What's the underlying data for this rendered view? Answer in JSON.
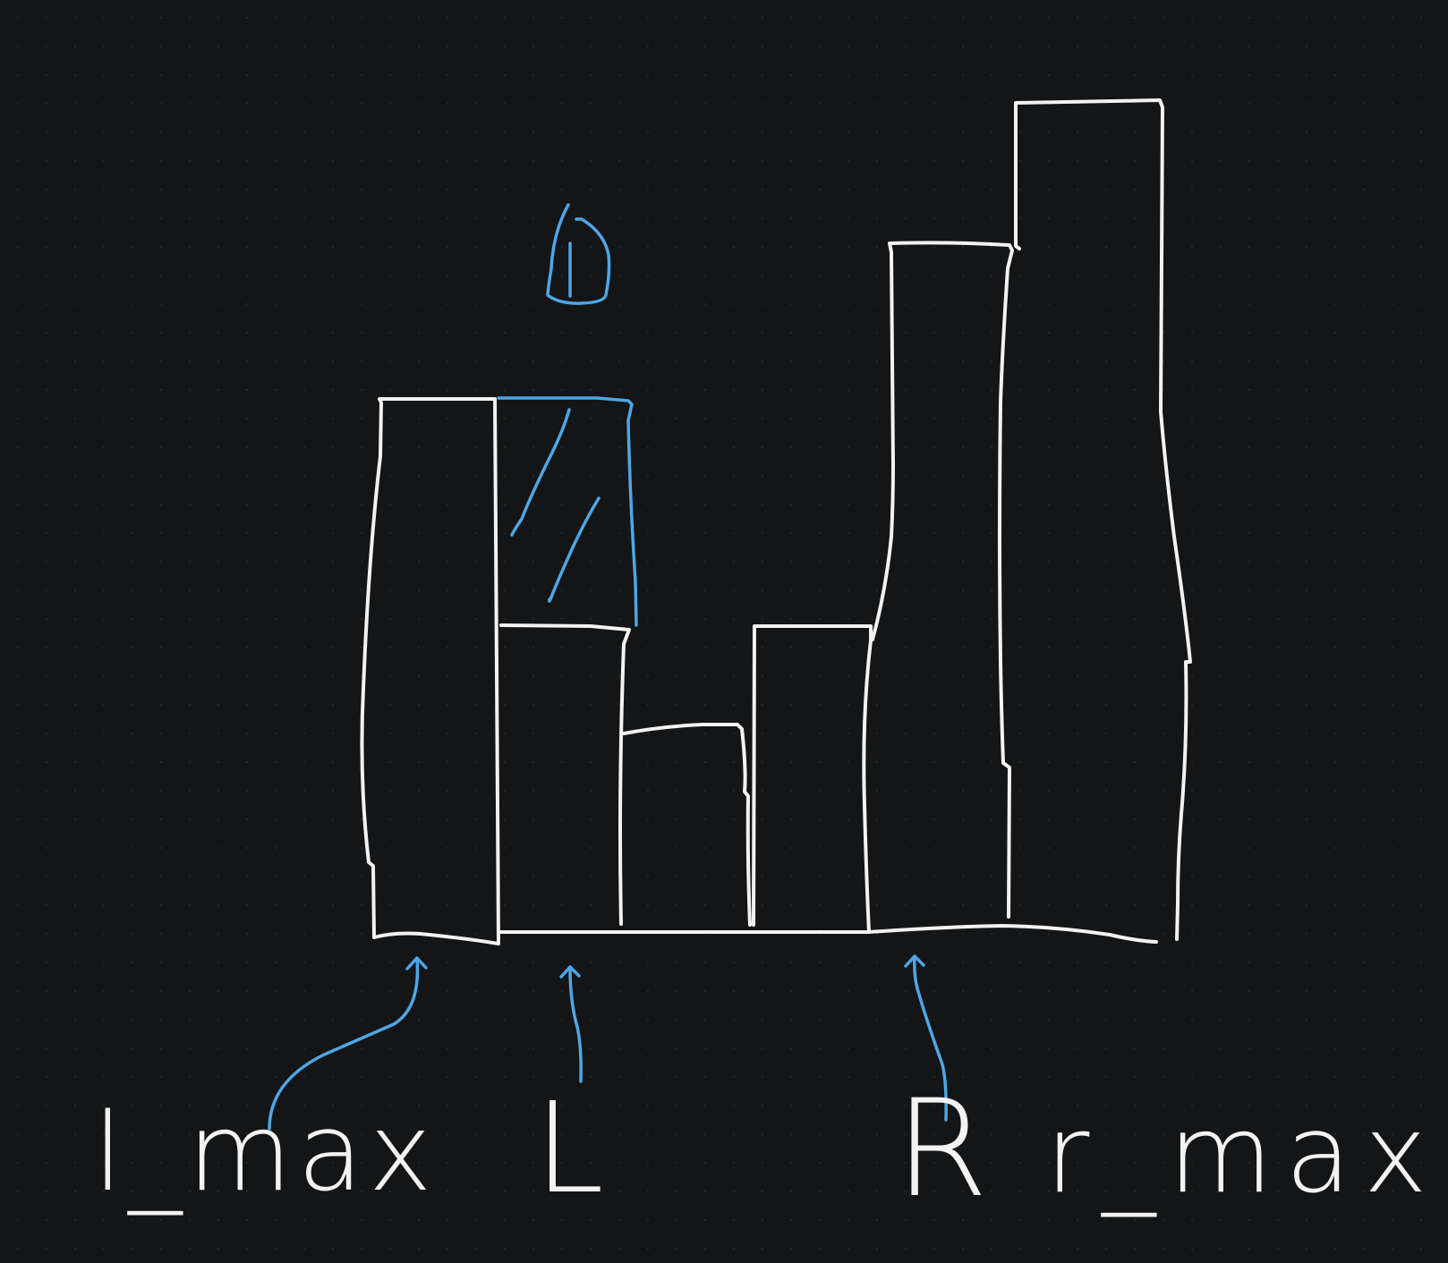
{
  "colors": {
    "background": "#141516",
    "grid_dot": "#232527",
    "stroke_white": "#f2f2f2",
    "stroke_blue": "#4ea6e6"
  },
  "labels": {
    "l_max": "l_max",
    "L": "L",
    "R": "R",
    "r_max": "r_max",
    "water_unit": "1"
  },
  "bar_heights_relative": [
    3,
    1.6,
    1,
    1.6,
    3.6,
    4.4
  ],
  "water_over_bar_index": 1
}
